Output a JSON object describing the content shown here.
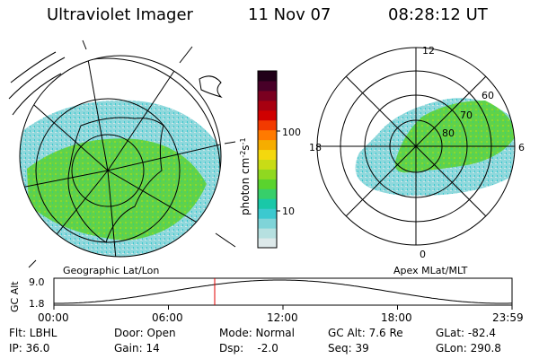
{
  "header": {
    "title": "Ultraviolet Imager",
    "date": "11 Nov 07",
    "time": "08:28:12 UT"
  },
  "left_panel": {
    "caption": "Geographic Lat/Lon"
  },
  "right_panel": {
    "caption": "Apex MLat/MLT",
    "mlt_labels": {
      "top": "12",
      "bottom": "0",
      "left": "18",
      "right": "6"
    },
    "lat_labels": [
      "60",
      "70",
      "80"
    ]
  },
  "colorbar": {
    "label": "photon cm",
    "label_sup1": "-2",
    "label_mid": "s",
    "label_sup2": "-1",
    "ticks": [
      "100",
      "10"
    ],
    "colors": [
      "#dde9ea",
      "#b6e0e0",
      "#7fd4d8",
      "#3cc9cf",
      "#19c8a8",
      "#37cf6a",
      "#5ad32e",
      "#90d820",
      "#c8dc16",
      "#f4d80e",
      "#f6ad00",
      "#ff7a00",
      "#f23a00",
      "#d00000",
      "#a80010",
      "#7a0020",
      "#480028",
      "#200018"
    ]
  },
  "orbit_plot": {
    "ylabel": "GC Alt",
    "ytick_top": "9.0",
    "ytick_bottom": "1.8",
    "xticks": [
      "00:00",
      "06:00",
      "12:00",
      "18:00",
      "23:59"
    ],
    "marker_fraction": 0.351,
    "marker_color": "#e00000"
  },
  "status": {
    "flt": "Flt: LBHL",
    "ip": "IP: 36.0",
    "door": "Door: Open",
    "gain": "Gain: 14",
    "mode": "Mode: Normal",
    "dsp": "Dsp:    -2.0",
    "gcalt": "GC Alt: 7.6 Re",
    "seq": "Seq: 39",
    "glat": "GLat: -82.4",
    "glon": "GLon: 290.8"
  }
}
